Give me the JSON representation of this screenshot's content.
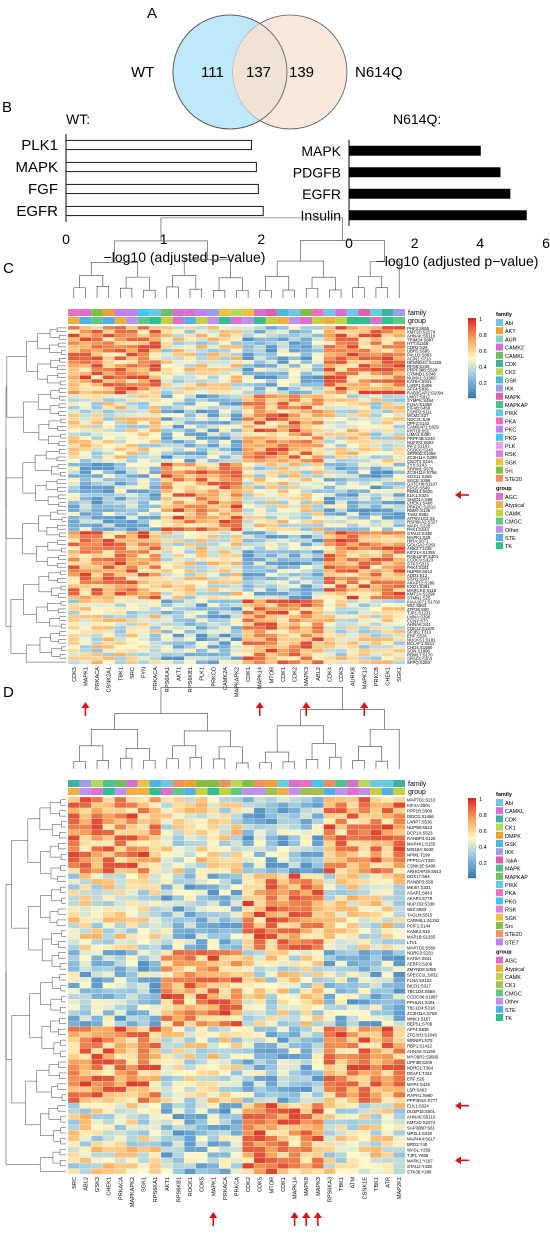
{
  "panels": {
    "A": "A",
    "B": "B",
    "C": "C",
    "D": "D"
  },
  "colors": {
    "wt_circle": "#bde9fb",
    "n614q_circle": "#fce5d8",
    "overlap": "#efe3d6",
    "hm_low": "#3a78b5",
    "hm_mid": "#fff9c8",
    "hm_high": "#e0402c"
  },
  "venn": {
    "left_label": "WT",
    "right_label": "N614Q",
    "left_only": "111",
    "overlap": "137",
    "right_only": "139"
  },
  "chart_data": [
    {
      "type": "bar",
      "title": "WT:",
      "orientation": "horizontal",
      "categories": [
        "PLK1",
        "MAPK",
        "FGF",
        "EGFR"
      ],
      "values": [
        1.9,
        1.95,
        1.97,
        2.02
      ],
      "xlabel": "−log10 (adjusted p−value)",
      "xlim": [
        0,
        2.1
      ],
      "xticks": [
        "0",
        "1",
        "2"
      ],
      "bar_color": "#ffffff"
    },
    {
      "type": "bar",
      "title": "N614Q:",
      "orientation": "horizontal",
      "categories": [
        "MAPK",
        "PDGFB",
        "EGFR",
        "Insulin"
      ],
      "values": [
        4.0,
        4.6,
        4.9,
        5.4
      ],
      "xlabel": "−log10 (adjusted p−value)",
      "xlim": [
        0,
        6
      ],
      "xticks": [
        "0",
        "2",
        "4",
        "6"
      ],
      "bar_color": "#000000"
    }
  ],
  "heatmap_c": {
    "family_label": "family",
    "group_label": "group",
    "scale": [
      "1",
      "0.8",
      "0.6",
      "0.4",
      "0.2"
    ],
    "family_legend": [
      {
        "label": "Abl",
        "color": "#6fc6e8"
      },
      {
        "label": "AKT",
        "color": "#f0a030"
      },
      {
        "label": "AUR",
        "color": "#7fd0c0"
      },
      {
        "label": "CAMK2",
        "color": "#d86fd0"
      },
      {
        "label": "CAMKL",
        "color": "#70c060"
      },
      {
        "label": "CDK",
        "color": "#40b0a0"
      },
      {
        "label": "CK2",
        "color": "#b7d95a"
      },
      {
        "label": "GSK",
        "color": "#4eb8d8"
      },
      {
        "label": "IKK",
        "color": "#9aa0e8"
      },
      {
        "label": "MAPK",
        "color": "#e060b0"
      },
      {
        "label": "MAPKAP",
        "color": "#50c090"
      },
      {
        "label": "PIKK",
        "color": "#60d0e0"
      },
      {
        "label": "PKA",
        "color": "#f070c0"
      },
      {
        "label": "PKC",
        "color": "#c080f0"
      },
      {
        "label": "PKG",
        "color": "#40c8f0"
      },
      {
        "label": "PLK",
        "color": "#e8a0f0"
      },
      {
        "label": "RSK",
        "color": "#e080e0"
      },
      {
        "label": "SGK",
        "color": "#f0c040"
      },
      {
        "label": "Src",
        "color": "#80c040"
      },
      {
        "label": "STE20",
        "color": "#f09060"
      }
    ],
    "group_legend": [
      {
        "label": "AGC",
        "color": "#e070d0"
      },
      {
        "label": "Atypical",
        "color": "#f0b040"
      },
      {
        "label": "CAMK",
        "color": "#c8d040"
      },
      {
        "label": "CMGC",
        "color": "#60c880"
      },
      {
        "label": "Other",
        "color": "#c090f0"
      },
      {
        "label": "STE",
        "color": "#50b0e8"
      },
      {
        "label": "TK",
        "color": "#30c090"
      }
    ],
    "columns": [
      "CDK5",
      "MAPK1",
      "PRKACA",
      "CSNK2A1",
      "TBK1",
      "SRC",
      "FYN",
      "PRKACA",
      "RPS6KA1",
      "AKT1",
      "RPS6KB1",
      "PLK1",
      "PRKCD",
      "CAMK2A",
      "MAPKAPK2",
      "CDK1",
      "MAPK14",
      "MTOR",
      "CDK1",
      "CDK2",
      "MAPK3",
      "ABL2",
      "CDK4",
      "CDK5",
      "AURKB",
      "MAPK13",
      "PRKCB",
      "CHEK1",
      "SGK1"
    ],
    "rows": [
      "PHF2:S655",
      "KMT2D:S2274",
      "AHNAK:S5110",
      "TRIM24:S887",
      "HTT:S1165",
      "CDR2:S26",
      "UBR5:S695",
      "PALLD:S893",
      "ACIN1:S710",
      "DENND4C:S1325",
      "RPS6:S236",
      "PRPF38B:S528",
      "CTNND1:S346",
      "NUMA1:S1969",
      "KAT6A:S941",
      "LARP1:S496",
      "AFF4:S836",
      "RAB3GAP2:S1094",
      "LMO7:S912",
      "SYMPK:S494",
      "FLNA:S1459",
      "EIF4B:S459",
      "CSRP2:S111",
      "MCM2:S27",
      "NOC2L:S49",
      "DPF2:S142",
      "CAMSAP1:S629",
      "KRT18:S52",
      "LIMA1:S490",
      "PRPF4B:S240",
      "NUFIP2:S652",
      "INF2:S1161",
      "CCDC6:S240",
      "SRRM2:S1068",
      "ZC3H11A:S290",
      "CNOT2:S164",
      "ZYX:S143",
      "SRRM1:S576",
      "ZC3H11A:S756",
      "SOX11:S265",
      "SGCE:S396",
      "GATCH6:S1107",
      "EPG5:S549",
      "RBM14:S620",
      "ELK1:S324",
      "SH2D1A:S98",
      "CHEK1:S468",
      "PRKDC:S2612",
      "RBM7:S136",
      "TAB2:S582",
      "ATP6V1G2:S2",
      "RSP6KA2:S327",
      "WAPL:S226",
      "PAK1:S144",
      "STAU2:S438",
      "MAPK1:S29",
      "HIRA:S671",
      "GOLGA2:S291",
      "ANK2:T1236",
      "KIF21A:S1355",
      "RAB11FIP:S301",
      "CCDC9:S323",
      "STK3:S315",
      "PAK4:S181",
      "NUP98:S612",
      "ADD1:S12",
      "SSH1:S937",
      "AKAP12:S286",
      "EXO1:S391",
      "MARCKS:S118",
      "KMT2A:S2296",
      "STMN1:S25",
      "KIAA1671:S1760",
      "WIZ:S983",
      "ZFP36:S90",
      "TJP1:S1231",
      "LMNA:S390",
      "CCNY:S73",
      "AHNAK:S41",
      "CDK12:S1100",
      "SF3B1:T313",
      "ERF:S526",
      "NUCKS1:S181",
      "BCLAF1:S512",
      "CHD4:S1590",
      "SON:S1996",
      "RBM17:S170",
      "SRSF6:S303",
      "SFPQ:S283"
    ],
    "highlight_row": "ELK1:S324",
    "highlight_columns": [
      "MAPK1",
      "MAPK14",
      "MAPK3",
      "MAPK13"
    ]
  },
  "heatmap_d": {
    "family_label": "family",
    "group_label": "group",
    "scale": [
      "1",
      "0.8",
      "0.6",
      "0.4",
      "0.2"
    ],
    "family_legend": [
      {
        "label": "Abl",
        "color": "#6fc6e8"
      },
      {
        "label": "CAMKL",
        "color": "#d86fd0"
      },
      {
        "label": "CDK",
        "color": "#40b0a0"
      },
      {
        "label": "CK1",
        "color": "#b7d95a"
      },
      {
        "label": "DMPK",
        "color": "#f0a030"
      },
      {
        "label": "GSK",
        "color": "#4eb8d8"
      },
      {
        "label": "IKK",
        "color": "#9aa0e8"
      },
      {
        "label": "JakA",
        "color": "#e060b0"
      },
      {
        "label": "MAPK",
        "color": "#50c090"
      },
      {
        "label": "MAPKAP",
        "color": "#70c060"
      },
      {
        "label": "PIKK",
        "color": "#60d0e0"
      },
      {
        "label": "PKA",
        "color": "#f070c0"
      },
      {
        "label": "PKG",
        "color": "#40c8f0"
      },
      {
        "label": "RSK",
        "color": "#e080e0"
      },
      {
        "label": "SGK",
        "color": "#f0c040"
      },
      {
        "label": "Src",
        "color": "#80c040"
      },
      {
        "label": "STE20",
        "color": "#f09060"
      },
      {
        "label": "STE7",
        "color": "#c080f0"
      }
    ],
    "group_legend": [
      {
        "label": "AGC",
        "color": "#e070d0"
      },
      {
        "label": "Atypical",
        "color": "#f0b040"
      },
      {
        "label": "CAMK",
        "color": "#c8d040"
      },
      {
        "label": "CK1",
        "color": "#a0c050"
      },
      {
        "label": "CMGC",
        "color": "#60c880"
      },
      {
        "label": "Other",
        "color": "#c090f0"
      },
      {
        "label": "STE",
        "color": "#50b0e8"
      },
      {
        "label": "TK",
        "color": "#30c090"
      }
    ],
    "columns": [
      "SRC",
      "ABL2",
      "GSK3",
      "CHEK1",
      "PRKACA",
      "MAPKAPK2",
      "SGK1",
      "RPS6KA1",
      "AKT1",
      "RPS6KB1",
      "ROCK1",
      "CDK5",
      "MAPK1",
      "PRKACA",
      "PRKCA",
      "CDK2",
      "CDK5",
      "MTOR",
      "CDK1",
      "MAPK14",
      "MAPK8",
      "MAPK3",
      "RPS6KA3",
      "TBK1",
      "ATM",
      "CSNK1E",
      "TBK1",
      "ATR",
      "MAP2K1"
    ],
    "rows": [
      "MAP7D1:S213",
      "KIF4A:S801",
      "PPP1R:S900",
      "DIDO1:S1456",
      "LARP7:S536",
      "NUP98:S623",
      "DCP1A:S523",
      "RANBP3:S126",
      "MAP4K1:S155",
      "MIS18A:S636",
      "NPM1:T199",
      "PPP1CA:T320",
      "CSNK1E:S408",
      "ARHGAP29:S913",
      "DDX17:S64",
      "RANBP3:S58",
      "MKI67:S331",
      "ASAP1:S843",
      "AKAP2:S779",
      "NUP153:S338",
      "WIZ:S983",
      "TAGLN:S515",
      "CARMIL1:S1292",
      "PCIF1:S144",
      "KANK2:S19",
      "MAP1B:S1265",
      "LTV1",
      "MAP7D2:S560",
      "NDRG3:S331",
      "KAT6A:S941",
      "AEBP2:S206",
      "ZMYND8:S455",
      "SPECC1L:S832",
      "FLNA:S2152",
      "BICD1:S317",
      "TBC1D4:S588",
      "CCDC86:S1887",
      "PPHLN1:S161",
      "TBC1D4:S318",
      "ZC3H11A:S758",
      "WNK1:S167",
      "BEPS1:S709",
      "AFF4:S836",
      "ZFC3H1:S1046",
      "WRNIP1:S75",
      "RBP1:S1422",
      "AHNAK:S1160",
      "MYCBP2:S3505",
      "UPF3B:S209",
      "NDRG1:T364",
      "DEAF1:T432",
      "ERF:S26",
      "MAP4:S425",
      "LSR:S493",
      "RAPH1:S990",
      "PPP4R3A:S777",
      "ELK1:S324",
      "DUSP16:S501",
      "AHNAK:S5110",
      "KMT2D:S2274",
      "SAP30BP:S61",
      "MPZL1:S230",
      "MAP4K4:S617",
      "BRD2:Y40",
      "WASL:Y256",
      "TJP1:Y668",
      "MAPK1:Y187",
      "STAU2:Y438",
      "STK38:Y288"
    ],
    "highlight_rows": [
      "ELK1:S324",
      "MAPK1:Y187"
    ],
    "highlight_columns": [
      "MAPK1",
      "MAPK14",
      "MAPK8",
      "MAPK3"
    ]
  }
}
